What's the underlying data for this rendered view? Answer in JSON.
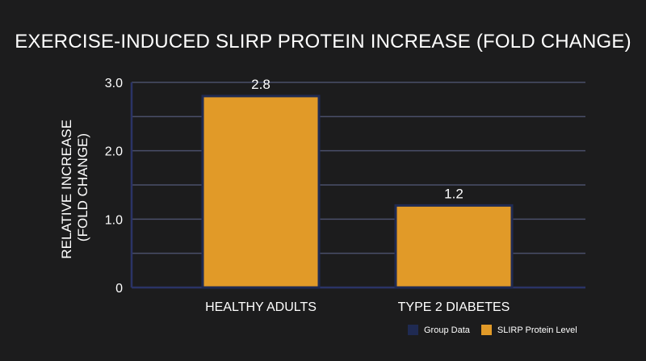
{
  "chart_data": {
    "type": "bar",
    "title": "EXERCISE-INDUCED SLIRP PROTEIN INCREASE (FOLD CHANGE)",
    "ylabel": [
      "RELATIVE INCREASE",
      "(FOLD CHANGE)"
    ],
    "xlabel": "",
    "categories": [
      "HEALTHY ADULTS",
      "TYPE 2 DIABETES"
    ],
    "values": [
      2.8,
      1.2
    ],
    "data_labels": [
      "2.8",
      "1.2"
    ],
    "ylim": [
      0,
      3.0
    ],
    "yticks": [
      0,
      1.0,
      2.0,
      3.0
    ],
    "ytick_labels": [
      "0",
      "1.0",
      "2.0",
      "3.0"
    ],
    "minor_gridlines": [
      0.5,
      1.5,
      2.5
    ],
    "grid": true,
    "legend_position": "bottom-right",
    "legend": [
      {
        "label": "Group Data",
        "color": "#1f2a52"
      },
      {
        "label": "SLIRP Protein Level",
        "color": "#e19a28"
      }
    ],
    "colors": {
      "bar_fill": "#e19a28",
      "bar_stroke": "#1f2a52",
      "gridline": "#4a4f6a",
      "axis": "#2a3366",
      "background": "#1c1c1d"
    }
  }
}
